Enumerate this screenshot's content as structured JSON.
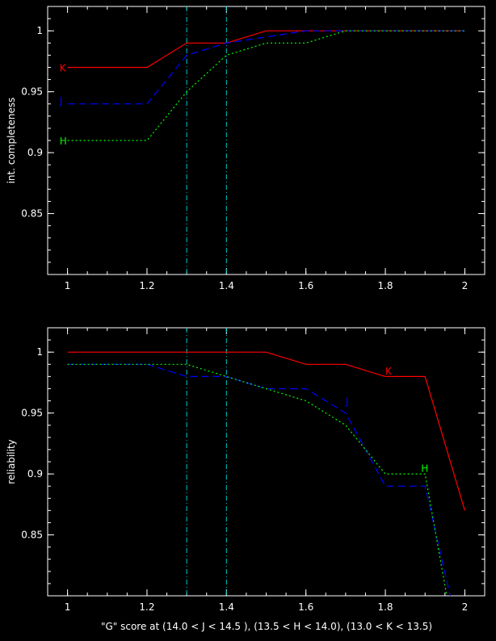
{
  "chart_data": [
    {
      "type": "line",
      "ylabel": "int. completeness",
      "xlabel": "",
      "xlim": [
        0.95,
        2.05
      ],
      "ylim": [
        0.8,
        1.02
      ],
      "xticks": [
        "1",
        "1.2",
        "1.4",
        "1.6",
        "1.8",
        "2"
      ],
      "yticks": [
        "0.85",
        "0.9",
        "0.95",
        "1"
      ],
      "vlines": [
        1.3,
        1.4
      ],
      "series": [
        {
          "name": "K",
          "color": "#ff0000",
          "dash": "solid",
          "x": [
            1.0,
            1.2,
            1.3,
            1.4,
            1.5,
            2.0
          ],
          "y": [
            0.97,
            0.97,
            0.99,
            0.99,
            1.0,
            1.0
          ],
          "label_at": [
            0.98,
            0.97
          ]
        },
        {
          "name": "J",
          "color": "#0000ff",
          "dash": "dashed",
          "x": [
            1.0,
            1.2,
            1.3,
            1.4,
            1.6,
            1.7,
            2.0
          ],
          "y": [
            0.94,
            0.94,
            0.98,
            0.99,
            1.0,
            1.0,
            1.0
          ],
          "label_at": [
            0.98,
            0.943
          ]
        },
        {
          "name": "H",
          "color": "#00ff00",
          "dash": "dotted",
          "x": [
            1.0,
            1.2,
            1.3,
            1.4,
            1.5,
            1.6,
            1.7,
            2.0
          ],
          "y": [
            0.91,
            0.91,
            0.95,
            0.98,
            0.99,
            0.99,
            1.0,
            1.0
          ],
          "label_at": [
            0.98,
            0.91
          ]
        }
      ]
    },
    {
      "type": "line",
      "ylabel": "reliability",
      "xlabel": "\"G\" score at (14.0 < J < 14.5 ), (13.5 < H < 14.0), (13.0 < K < 13.5)",
      "xlim": [
        0.95,
        2.05
      ],
      "ylim": [
        0.8,
        1.02
      ],
      "xticks": [
        "1",
        "1.2",
        "1.4",
        "1.6",
        "1.8",
        "2"
      ],
      "yticks": [
        "0.85",
        "0.9",
        "0.95",
        "1"
      ],
      "vlines": [
        1.3,
        1.4
      ],
      "series": [
        {
          "name": "K",
          "color": "#ff0000",
          "dash": "solid",
          "x": [
            1.0,
            1.5,
            1.6,
            1.7,
            1.8,
            1.9,
            2.0
          ],
          "y": [
            1.0,
            1.0,
            0.99,
            0.99,
            0.98,
            0.98,
            0.87
          ],
          "label_at": [
            1.8,
            0.985
          ]
        },
        {
          "name": "J",
          "color": "#0000ff",
          "dash": "dashed",
          "x": [
            1.0,
            1.2,
            1.3,
            1.4,
            1.5,
            1.6,
            1.7,
            1.8,
            1.9,
            1.97
          ],
          "y": [
            0.99,
            0.99,
            0.98,
            0.98,
            0.97,
            0.97,
            0.95,
            0.89,
            0.89,
            0.79
          ],
          "label_at": [
            1.7,
            0.96
          ]
        },
        {
          "name": "H",
          "color": "#00ff00",
          "dash": "dotted",
          "x": [
            1.0,
            1.2,
            1.3,
            1.4,
            1.5,
            1.6,
            1.7,
            1.8,
            1.9,
            1.96
          ],
          "y": [
            0.99,
            0.99,
            0.99,
            0.98,
            0.97,
            0.96,
            0.94,
            0.9,
            0.9,
            0.79
          ],
          "label_at": [
            1.89,
            0.905
          ]
        }
      ]
    }
  ]
}
